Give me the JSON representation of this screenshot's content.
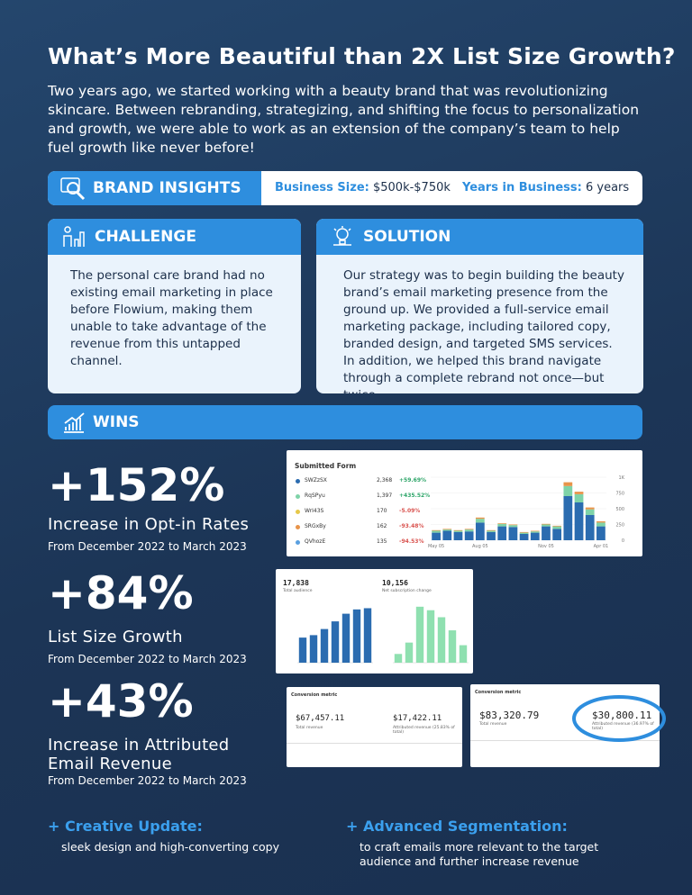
{
  "header": {
    "title": "What’s More Beautiful than 2X List Size Growth?",
    "intro": "Two years ago, we started working with a beauty brand that was revolutionizing skincare. Between rebranding, strategizing, and shifting the focus to personalization and growth, we were able to work as an extension of the company’s team to help fuel growth like never before!"
  },
  "brand_insights": {
    "label": "BRAND INSIGHTS",
    "business_size_label": "Business Size:",
    "business_size": "$500k-$750k",
    "years_label": "Years in Business:",
    "years": "6 years"
  },
  "challenge": {
    "title": "CHALLENGE",
    "text": "The personal care brand had no existing email marketing in place before Flowium, making them unable to take advantage of the revenue from this untapped channel."
  },
  "solution": {
    "title": "SOLUTION",
    "text": "Our strategy was to begin building the beauty brand’s email marketing presence from the ground up. We provided a full-service email marketing package, including tailored copy, branded design, and targeted SMS services. In addition, we helped this brand navigate through a complete rebrand not once—but twice."
  },
  "wins": {
    "title": "WINS",
    "stats": [
      {
        "value": "+152%",
        "label": "Increase in Opt-in Rates",
        "period": "From December 2022 to March 2023"
      },
      {
        "value": "+84%",
        "label": "List Size Growth",
        "period": "From December 2022 to March 2023"
      },
      {
        "value": "+43%",
        "label": "Increase in Attributed Email Revenue",
        "period": "From December 2022 to March 2023"
      }
    ]
  },
  "screenshots": {
    "form": {
      "title": "Submitted Form",
      "rows": [
        {
          "name": "SWZzSX",
          "count": "2,368",
          "change": "+59.69%",
          "color": "#2b6cb0"
        },
        {
          "name": "RqSPyu",
          "count": "1,397",
          "change": "+435.52%",
          "color": "#7fd3a8"
        },
        {
          "name": "WrI43S",
          "count": "170",
          "change": "-5.09%",
          "color": "#e6c84a"
        },
        {
          "name": "SRGxBy",
          "count": "162",
          "change": "-93.48%",
          "color": "#e8944a"
        },
        {
          "name": "QVhozE",
          "count": "135",
          "change": "-94.53%",
          "color": "#5aa0e0"
        }
      ],
      "chart": {
        "type": "bar",
        "categories": [
          "May 05",
          null,
          null,
          null,
          "Aug 05",
          null,
          null,
          null,
          null,
          null,
          "Nov 05",
          null,
          null,
          null,
          null,
          "Apr 01"
        ],
        "series": [
          {
            "color": "#2b6cb0",
            "values": [
              120,
              150,
              130,
              140,
              280,
              130,
              220,
              210,
              100,
              120,
              220,
              180,
              700,
              600,
              400,
              220
            ]
          },
          {
            "color": "#7fd3a8",
            "values": [
              30,
              20,
              20,
              30,
              60,
              20,
              40,
              30,
              20,
              20,
              30,
              40,
              160,
              130,
              90,
              60
            ]
          },
          {
            "color": "#e8944a",
            "values": [
              10,
              10,
              10,
              10,
              20,
              10,
              10,
              10,
              10,
              10,
              10,
              10,
              60,
              40,
              30,
              20
            ]
          }
        ],
        "ylim": [
          0,
          1000
        ],
        "yticks": [
          0,
          250,
          500,
          750,
          {
            "value": 1000,
            "label": "1K"
          }
        ]
      }
    },
    "audience": {
      "total": "17,838",
      "total_label": "Total audience",
      "net": "10,156",
      "net_label": "Net subscription change",
      "left_chart": {
        "type": "bar",
        "color": "#2b6cb0",
        "values": [
          8.2,
          9,
          11,
          13.5,
          16,
          17.4,
          17.8
        ],
        "ylim": [
          0,
          20
        ]
      },
      "right_chart": {
        "type": "bar",
        "color": "#8fe0b0",
        "values": [
          1,
          2.3,
          6.4,
          6,
          5.2,
          3.7,
          2
        ],
        "ylim": [
          0,
          7
        ]
      }
    },
    "revenue_a": {
      "title": "Conversion metric",
      "total": "$67,457.11",
      "total_label": "Total revenue",
      "attributed": "$17,422.11",
      "attributed_label": "Attributed revenue (25.83% of total)"
    },
    "revenue_b": {
      "title": "Conversion metric",
      "total": "$83,320.79",
      "total_label": "Total revenue",
      "attributed": "$30,800.11",
      "attributed_label": "Attributed revenue (36.97% of total)"
    }
  },
  "highlights": [
    {
      "title": "+ Creative Update:",
      "text": "sleek design and high-converting copy"
    },
    {
      "title": "+ Advanced Segmentation:",
      "text": "to craft emails more relevant to the target audience and further increase revenue"
    }
  ]
}
